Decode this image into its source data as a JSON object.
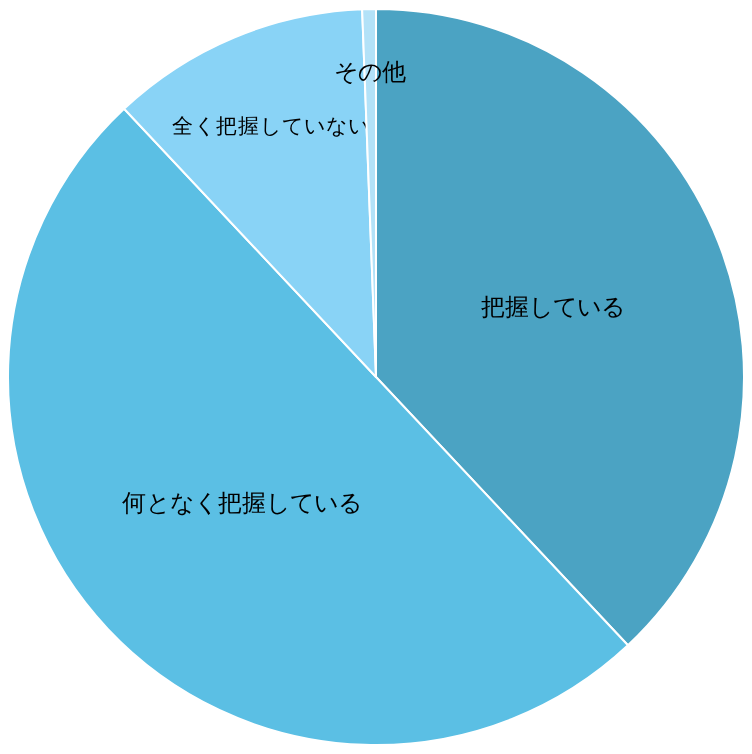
{
  "chart_data": {
    "type": "pie",
    "categories": [
      "把握している",
      "何となく把握している",
      "全く把握していない",
      "その他"
    ],
    "values": [
      38,
      50,
      11.4,
      0.6
    ],
    "colors": [
      "#4ba3c3",
      "#5bbfe4",
      "#89d3f6",
      "#b3e2f8"
    ]
  }
}
